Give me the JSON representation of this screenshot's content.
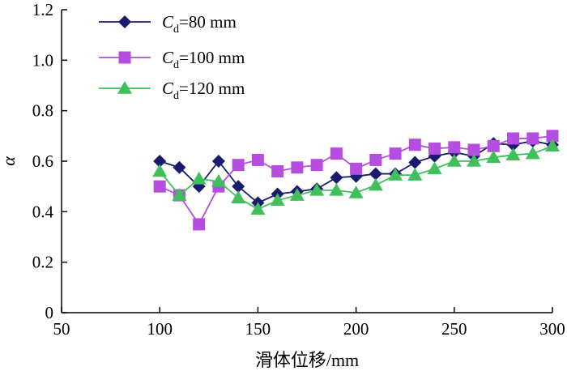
{
  "chart_data": {
    "type": "line",
    "xlabel": "滑体位移/mm",
    "ylabel": "α",
    "xlim": [
      50,
      300
    ],
    "ylim": [
      0,
      1.2
    ],
    "xticks": [
      "50",
      "100",
      "150",
      "200",
      "250",
      "300"
    ],
    "yticks": [
      "0",
      "0.2",
      "0.4",
      "0.6",
      "0.8",
      "1.0",
      "1.2"
    ],
    "grid": false,
    "legend_position": "top-left",
    "x": [
      100,
      110,
      120,
      130,
      140,
      150,
      160,
      170,
      180,
      190,
      200,
      210,
      220,
      230,
      240,
      250,
      260,
      270,
      280,
      290,
      300
    ],
    "series": [
      {
        "name": "Cd=80 mm",
        "label_main": "C",
        "label_sub": "d",
        "label_rest": "=80 mm",
        "color": "#1a1a6e",
        "marker": "diamond",
        "values": [
          0.6,
          0.575,
          0.5,
          0.6,
          0.5,
          0.435,
          0.47,
          0.48,
          0.49,
          0.535,
          0.54,
          0.55,
          0.55,
          0.595,
          0.62,
          0.635,
          0.62,
          0.67,
          0.665,
          0.68,
          0.665
        ]
      },
      {
        "name": "Cd=100 mm",
        "label_main": "C",
        "label_sub": "d",
        "label_rest": "=100 mm",
        "color": "#b44de0",
        "marker": "square",
        "values": [
          0.5,
          0.465,
          0.35,
          0.5,
          0.585,
          0.605,
          0.56,
          0.575,
          0.585,
          0.63,
          0.57,
          0.605,
          0.63,
          0.665,
          0.65,
          0.655,
          0.645,
          0.66,
          0.69,
          0.69,
          0.7
        ]
      },
      {
        "name": "Cd=120 mm",
        "label_main": "C",
        "label_sub": "d",
        "label_rest": "=120 mm",
        "color": "#3fc05a",
        "marker": "triangle",
        "values": [
          0.56,
          0.465,
          0.53,
          0.52,
          0.455,
          0.41,
          0.445,
          0.465,
          0.485,
          0.485,
          0.475,
          0.505,
          0.545,
          0.545,
          0.57,
          0.6,
          0.6,
          0.615,
          0.625,
          0.63,
          0.66
        ]
      }
    ]
  }
}
